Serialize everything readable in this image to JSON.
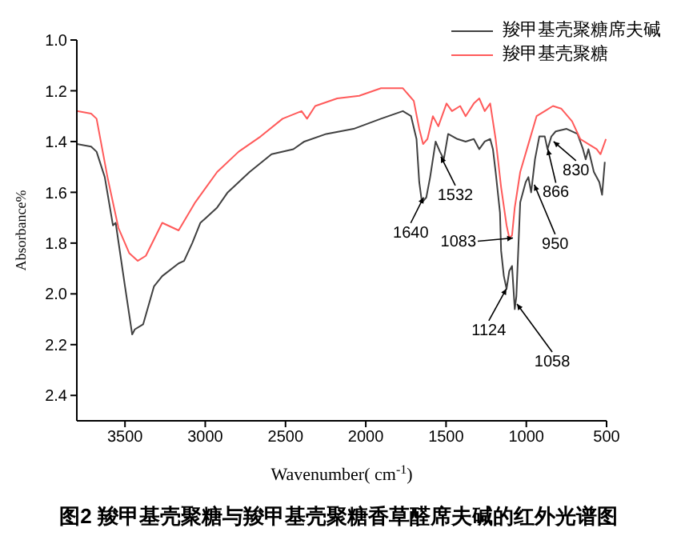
{
  "chart_data": {
    "type": "line",
    "title": "图2 羧甲基壳聚糖与羧甲基壳聚糖香草醛席夫碱的红外光谱图",
    "xlabel": "Wavenumber( cm$^{-1}$)",
    "ylabel": "Absorbance%",
    "xlim": [
      3800,
      500
    ],
    "xticks": [
      3500,
      3000,
      2500,
      2000,
      1500,
      1000,
      500
    ],
    "ylim": [
      2.5,
      1.0
    ],
    "yticks": [
      {
        "value": 1.0,
        "label": "1.0"
      },
      {
        "value": 1.2,
        "label": "1.2"
      },
      {
        "value": 1.4,
        "label": "1.4"
      },
      {
        "value": 1.6,
        "label": "1.6"
      },
      {
        "value": 1.8,
        "label": "1.8"
      },
      {
        "value": 2.0,
        "label": "2.0"
      },
      {
        "value": 2.2,
        "label": "2.2"
      },
      {
        "value": 2.4,
        "label": "2.4"
      }
    ],
    "legend": "top right",
    "marker": "none",
    "line_style": "solid",
    "series": [
      {
        "name": "羧甲基壳聚糖席夫碱",
        "color": "#404040",
        "x": [
          3800,
          3711,
          3677,
          3626,
          3575,
          3558,
          3500,
          3455,
          3439,
          3387,
          3319,
          3268,
          3166,
          3132,
          3081,
          3030,
          2995,
          2926,
          2860,
          2724,
          2587,
          2451,
          2383,
          2246,
          2076,
          1905,
          1769,
          1718,
          1684,
          1667,
          1650,
          1623,
          1599,
          1565,
          1538,
          1514,
          1487,
          1429,
          1378,
          1327,
          1293,
          1259,
          1225,
          1208,
          1191,
          1164,
          1157,
          1140,
          1123,
          1106,
          1089,
          1072,
          1062,
          1038,
          1004,
          987,
          970,
          946,
          919,
          885,
          868,
          844,
          817,
          749,
          681,
          647,
          630,
          613,
          579,
          545,
          528,
          511
        ],
        "values": [
          1.41,
          1.42,
          1.44,
          1.54,
          1.73,
          1.72,
          1.97,
          2.16,
          2.14,
          2.12,
          1.97,
          1.93,
          1.88,
          1.87,
          1.8,
          1.72,
          1.7,
          1.66,
          1.6,
          1.52,
          1.45,
          1.43,
          1.4,
          1.37,
          1.35,
          1.31,
          1.28,
          1.3,
          1.39,
          1.56,
          1.64,
          1.62,
          1.54,
          1.4,
          1.44,
          1.47,
          1.37,
          1.39,
          1.4,
          1.39,
          1.43,
          1.4,
          1.39,
          1.43,
          1.52,
          1.68,
          1.83,
          1.93,
          1.98,
          1.91,
          1.89,
          2.06,
          2.01,
          1.64,
          1.56,
          1.54,
          1.6,
          1.47,
          1.38,
          1.38,
          1.43,
          1.38,
          1.36,
          1.35,
          1.37,
          1.43,
          1.47,
          1.43,
          1.52,
          1.56,
          1.61,
          1.48
        ]
      },
      {
        "name": "羧甲基壳聚糖",
        "color": "#ff5a5a",
        "x": [
          3800,
          3711,
          3677,
          3609,
          3541,
          3473,
          3421,
          3370,
          3268,
          3166,
          3063,
          2926,
          2792,
          2655,
          2518,
          2400,
          2366,
          2315,
          2178,
          2041,
          1905,
          1769,
          1701,
          1667,
          1643,
          1616,
          1582,
          1548,
          1497,
          1463,
          1412,
          1378,
          1327,
          1293,
          1259,
          1225,
          1191,
          1157,
          1123,
          1106,
          1089,
          1072,
          1038,
          987,
          936,
          885,
          834,
          783,
          715,
          664,
          613,
          562,
          538,
          504
        ],
        "values": [
          1.28,
          1.29,
          1.31,
          1.54,
          1.74,
          1.84,
          1.87,
          1.85,
          1.72,
          1.75,
          1.64,
          1.52,
          1.44,
          1.38,
          1.31,
          1.28,
          1.31,
          1.26,
          1.23,
          1.22,
          1.19,
          1.19,
          1.24,
          1.35,
          1.41,
          1.39,
          1.3,
          1.34,
          1.25,
          1.28,
          1.26,
          1.3,
          1.25,
          1.23,
          1.28,
          1.25,
          1.39,
          1.58,
          1.73,
          1.78,
          1.77,
          1.66,
          1.52,
          1.41,
          1.3,
          1.28,
          1.26,
          1.27,
          1.32,
          1.39,
          1.41,
          1.43,
          1.45,
          1.39
        ]
      }
    ],
    "annotations": [
      {
        "text": "1640",
        "x": 1640,
        "y": 1.62
      },
      {
        "text": "1532",
        "x": 1532,
        "y": 1.46
      },
      {
        "text": "1083",
        "x": 1083,
        "y": 1.78
      },
      {
        "text": "1124",
        "x": 1124,
        "y": 1.98
      },
      {
        "text": "1058",
        "x": 1058,
        "y": 2.04
      },
      {
        "text": "950",
        "x": 950,
        "y": 1.57
      },
      {
        "text": "866",
        "x": 866,
        "y": 1.43
      },
      {
        "text": "830",
        "x": 830,
        "y": 1.4
      }
    ]
  }
}
